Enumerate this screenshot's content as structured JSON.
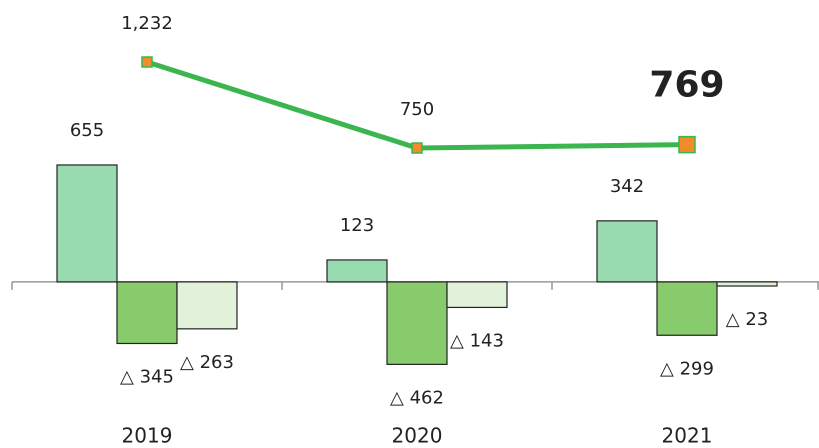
{
  "chart_data": {
    "type": "bar",
    "categories": [
      "2019",
      "2020",
      "2021"
    ],
    "series": [
      {
        "color": "#99dbb1",
        "values": [
          655,
          123,
          342
        ]
      },
      {
        "color": "#87cb6d",
        "values": [
          -345,
          -462,
          -299
        ],
        "value_labels": [
          "△ 345",
          "△ 462",
          "△ 299"
        ]
      },
      {
        "color": "#e2f2da",
        "values": [
          -263,
          -143,
          -23
        ],
        "value_labels": [
          "△ 263",
          "△ 143",
          "△ 23"
        ]
      }
    ],
    "line": {
      "color": "#3bb54e",
      "marker_color": "#f28b2a",
      "values": [
        1232,
        750,
        769
      ],
      "value_labels": [
        "1,232",
        "750",
        "769"
      ]
    },
    "ylim": [
      -600,
      1400
    ]
  }
}
